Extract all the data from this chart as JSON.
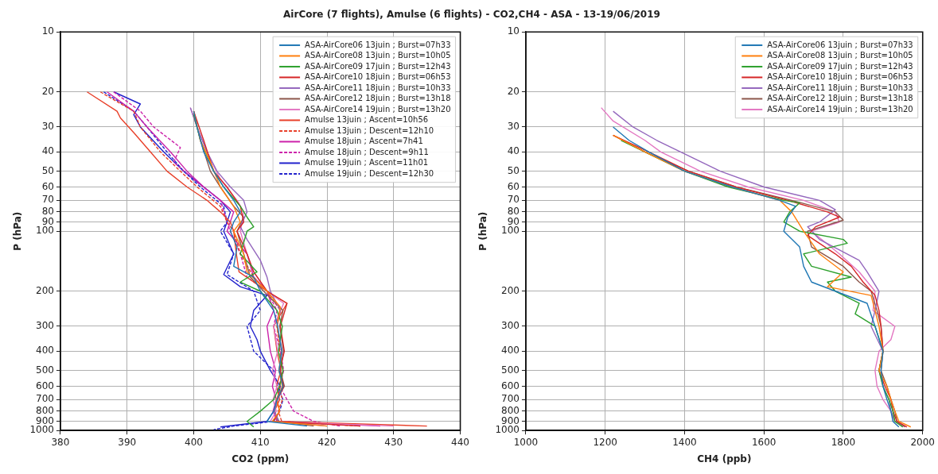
{
  "chart_data": [
    {
      "type": "line",
      "title": "AirCore (7 flights), Amulse (6 flights) - CO2,CH4 - ASA - 13-19/06/2019",
      "xlabel": "CO2 (ppm)",
      "ylabel": "P (hPa)",
      "xlim": [
        380,
        440
      ],
      "xticks": [
        380,
        390,
        400,
        410,
        420,
        430,
        440
      ],
      "ylim": [
        1000,
        10
      ],
      "yticks": [
        10,
        20,
        30,
        40,
        50,
        60,
        70,
        80,
        90,
        100,
        200,
        300,
        400,
        500,
        600,
        700,
        800,
        900,
        1000
      ],
      "log": "y",
      "grid": true,
      "legend": "top right",
      "marker": "none",
      "series": [
        {
          "name": "ASA-AirCore06 13juin ; Burst=07h33",
          "color": "#1f77b4",
          "x": [
            400,
            400.5,
            401.5,
            403,
            404.5,
            406,
            407,
            406,
            405.5,
            406.5,
            406,
            409,
            410,
            412,
            412.6,
            413.2,
            412.8,
            413.4,
            412.5,
            412,
            411,
            417
          ],
          "values": [
            25,
            30,
            40,
            50,
            60,
            70,
            80,
            90,
            100,
            120,
            150,
            170,
            200,
            250,
            300,
            400,
            500,
            600,
            700,
            800,
            900,
            950
          ]
        },
        {
          "name": "ASA-AirCore08 13juin ; Burst=10h05",
          "color": "#ff7f0e",
          "x": [
            400,
            401,
            402.5,
            404,
            406,
            407,
            406,
            407.5,
            408,
            411,
            413,
            412.5,
            413.2,
            412.8,
            413.3,
            412.4,
            412.9,
            411.8,
            420
          ],
          "values": [
            25,
            35,
            45,
            60,
            75,
            90,
            100,
            130,
            160,
            200,
            240,
            300,
            400,
            500,
            600,
            700,
            800,
            900,
            950
          ]
        },
        {
          "name": "ASA-AirCore09 17juin ; Burst=12h43",
          "color": "#2ca02c",
          "x": [
            400,
            401,
            403,
            404.5,
            407,
            408,
            409,
            408,
            407,
            409.5,
            407,
            410,
            412.5,
            413.3,
            412.7,
            413.4,
            412.9,
            412,
            410,
            408,
            409
          ],
          "values": [
            26,
            35,
            50,
            60,
            75,
            85,
            95,
            100,
            130,
            160,
            180,
            200,
            250,
            300,
            400,
            500,
            600,
            700,
            800,
            900,
            960
          ]
        },
        {
          "name": "ASA-AirCore10 18juin ; Burst=06h53",
          "color": "#d62728",
          "x": [
            400,
            401.5,
            403,
            405,
            407,
            407.5,
            406.5,
            408,
            409,
            411,
            414,
            413,
            413.6,
            412.9,
            413.5,
            412.5,
            412.9,
            411.9,
            425
          ],
          "values": [
            25,
            35,
            50,
            60,
            75,
            90,
            100,
            130,
            160,
            200,
            230,
            300,
            400,
            500,
            600,
            700,
            800,
            900,
            950
          ]
        },
        {
          "name": "ASA-AirCore11 18juin ; Burst=10h33",
          "color": "#9467bd",
          "x": [
            399.5,
            400.5,
            402,
            403.5,
            405.5,
            407.5,
            408,
            407,
            408,
            410,
            411,
            411.5,
            413,
            412.5,
            413.3,
            412.8,
            413.4,
            412.6,
            412.1,
            412.7,
            420
          ],
          "values": [
            24,
            30,
            40,
            50,
            60,
            70,
            80,
            95,
            110,
            140,
            170,
            200,
            250,
            300,
            400,
            500,
            600,
            700,
            800,
            900,
            950
          ]
        },
        {
          "name": "ASA-AirCore12 18juin ; Burst=13h18",
          "color": "#8c564b",
          "x": [
            400,
            401,
            402.5,
            404,
            406,
            407.5,
            406.5,
            407.5,
            408.5,
            410.5,
            413.4,
            412.9,
            413.5,
            413,
            413.6,
            412.5,
            412.1,
            412.8,
            418
          ],
          "values": [
            25,
            35,
            50,
            60,
            75,
            85,
            100,
            130,
            170,
            200,
            250,
            300,
            400,
            500,
            600,
            700,
            800,
            900,
            950
          ]
        },
        {
          "name": "ASA-AirCore14 19juin ; Burst=13h20",
          "color": "#e377c2",
          "x": [
            399.5,
            400.5,
            402,
            404,
            406.5,
            407.5,
            407,
            408,
            409,
            411,
            413.5,
            412,
            412.6,
            411.8,
            412.5,
            411.9,
            412.4,
            411.5,
            430
          ],
          "values": [
            24,
            30,
            40,
            55,
            70,
            80,
            100,
            130,
            160,
            200,
            230,
            300,
            400,
            500,
            600,
            700,
            800,
            900,
            950
          ]
        },
        {
          "name": "Amulse 13juin ; Ascent=10h56",
          "color": "#e8402a",
          "x": [
            384,
            388.5,
            389,
            391,
            393.5,
            396,
            399,
            402,
            404,
            405.5,
            406,
            406.4,
            406.8,
            411,
            414,
            412,
            412.5,
            413.1,
            412.4,
            412.9,
            412.1,
            412.6,
            435
          ],
          "values": [
            20,
            25,
            27,
            32,
            40,
            50,
            60,
            70,
            80,
            90,
            100,
            130,
            160,
            200,
            230,
            300,
            400,
            500,
            600,
            700,
            800,
            900,
            950
          ]
        },
        {
          "name": "Amulse 13juin ; Descent=12h10",
          "color": "#e8402a",
          "line_style": "dashed",
          "x": [
            386,
            391,
            392,
            395,
            398,
            400.5,
            404,
            405,
            406,
            407,
            409,
            411,
            413,
            412.5,
            412.9,
            413.4,
            412.8,
            413.3,
            412.7,
            413.2,
            425
          ],
          "values": [
            20,
            25,
            30,
            40,
            50,
            60,
            75,
            90,
            100,
            130,
            170,
            200,
            250,
            300,
            400,
            500,
            600,
            700,
            800,
            900,
            950
          ]
        },
        {
          "name": "Amulse 18juin ; Ascent=7h41",
          "color": "#cc22aa",
          "x": [
            387,
            391,
            393,
            396.5,
            399,
            401.5,
            404,
            406,
            405,
            408,
            409,
            411,
            412,
            411,
            411.5,
            412.3,
            411.8,
            412.4,
            411.9,
            412.5,
            428
          ],
          "values": [
            20,
            25,
            30,
            40,
            50,
            60,
            70,
            80,
            100,
            130,
            170,
            200,
            250,
            300,
            400,
            500,
            600,
            700,
            800,
            900,
            950
          ]
        },
        {
          "name": "Amulse 18juin ; Descent=9h11",
          "color": "#cc22aa",
          "line_style": "dashed",
          "x": [
            388,
            392,
            394,
            398,
            397,
            400,
            404,
            405,
            405.5,
            407,
            408,
            411,
            412.5,
            412,
            413,
            413.5,
            412.9,
            414,
            415,
            418,
            422
          ],
          "values": [
            20,
            25,
            30,
            38,
            45,
            55,
            70,
            90,
            100,
            130,
            170,
            200,
            250,
            300,
            400,
            500,
            600,
            700,
            800,
            900,
            950
          ]
        },
        {
          "name": "Amulse 19juin ; Ascent=11h01",
          "color": "#2222cc",
          "x": [
            388,
            392,
            391,
            392,
            395.5,
            398.5,
            401.5,
            404,
            405.5,
            405,
            404.5,
            406,
            404.5,
            407,
            411,
            409,
            408.5,
            409.5,
            410,
            411.5,
            413,
            412.5,
            412,
            411,
            404
          ],
          "values": [
            20,
            23,
            26,
            30,
            40,
            50,
            60,
            70,
            80,
            90,
            100,
            130,
            165,
            190,
            210,
            250,
            300,
            350,
            400,
            500,
            600,
            700,
            800,
            900,
            960
          ]
        },
        {
          "name": "Amulse 19juin ; Descent=12h30",
          "color": "#2222cc",
          "line_style": "dashed",
          "x": [
            386.5,
            391,
            393,
            396,
            398.5,
            401,
            404.5,
            405,
            404,
            406,
            405,
            409,
            410,
            408,
            409,
            412,
            412.6,
            413.4,
            412.9,
            412,
            406,
            403
          ],
          "values": [
            20,
            25,
            30,
            40,
            50,
            60,
            75,
            90,
            100,
            130,
            165,
            200,
            250,
            300,
            400,
            500,
            600,
            700,
            800,
            900,
            950,
            990
          ]
        }
      ]
    },
    {
      "type": "line",
      "xlabel": "CH4 (ppb)",
      "ylabel": "P (hPa)",
      "xlim": [
        1000,
        2000
      ],
      "xticks": [
        1000,
        1200,
        1400,
        1600,
        1800,
        2000
      ],
      "ylim": [
        1000,
        10
      ],
      "yticks": [
        10,
        20,
        30,
        40,
        50,
        60,
        70,
        80,
        90,
        100,
        200,
        300,
        400,
        500,
        600,
        700,
        800,
        900,
        1000
      ],
      "log": "y",
      "grid": true,
      "legend": "top right",
      "marker": "none",
      "series": [
        {
          "name": "ASA-AirCore06 13juin ; Burst=07h33",
          "color": "#1f77b4",
          "x": [
            1220,
            1260,
            1310,
            1400,
            1520,
            1640,
            1680,
            1660,
            1650,
            1690,
            1700,
            1720,
            1780,
            1860,
            1880,
            1900,
            1895,
            1900,
            1910,
            1920,
            1925,
            1940
          ],
          "values": [
            30,
            35,
            40,
            50,
            60,
            70,
            75,
            85,
            100,
            120,
            150,
            180,
            200,
            230,
            300,
            400,
            500,
            600,
            700,
            800,
            900,
            960
          ]
        },
        {
          "name": "ASA-AirCore08 13juin ; Burst=10h05",
          "color": "#ff7f0e",
          "x": [
            1220,
            1300,
            1400,
            1520,
            1640,
            1670,
            1700,
            1740,
            1800,
            1760,
            1870,
            1880,
            1890,
            1900,
            1890,
            1910,
            1920,
            1930,
            1940,
            1970
          ],
          "values": [
            33,
            40,
            50,
            60,
            70,
            80,
            100,
            130,
            160,
            190,
            210,
            250,
            300,
            400,
            500,
            600,
            700,
            800,
            900,
            960
          ]
        },
        {
          "name": "ASA-AirCore09 17juin ; Burst=12h43",
          "color": "#2ca02c",
          "x": [
            1240,
            1300,
            1400,
            1510,
            1650,
            1690,
            1665,
            1650,
            1690,
            1800,
            1810,
            1700,
            1720,
            1820,
            1760,
            1780,
            1840,
            1830,
            1880,
            1900,
            1890,
            1900,
            1915,
            1925,
            1930,
            1950
          ],
          "values": [
            35,
            40,
            50,
            60,
            70,
            72,
            80,
            90,
            100,
            110,
            115,
            130,
            150,
            170,
            180,
            200,
            230,
            260,
            300,
            400,
            500,
            600,
            700,
            800,
            900,
            960
          ]
        },
        {
          "name": "ASA-AirCore10 18juin ; Burst=06h53",
          "color": "#d62728",
          "x": [
            1220,
            1310,
            1410,
            1530,
            1660,
            1760,
            1790,
            1730,
            1710,
            1780,
            1820,
            1850,
            1880,
            1890,
            1895,
            1900,
            1890,
            1905,
            1920,
            1925,
            1935,
            1960
          ],
          "values": [
            33,
            40,
            50,
            60,
            70,
            80,
            85,
            95,
            105,
            130,
            150,
            180,
            210,
            250,
            300,
            400,
            500,
            600,
            700,
            800,
            900,
            960
          ]
        },
        {
          "name": "ASA-AirCore11 18juin ; Burst=10h33",
          "color": "#9467bd",
          "x": [
            1220,
            1270,
            1330,
            1390,
            1490,
            1600,
            1740,
            1780,
            1740,
            1710,
            1740,
            1840,
            1860,
            1890,
            1880,
            1870,
            1900,
            1890,
            1900,
            1915,
            1920,
            1930,
            1950
          ],
          "values": [
            25,
            30,
            35,
            40,
            50,
            60,
            70,
            78,
            90,
            95,
            110,
            140,
            160,
            200,
            250,
            300,
            400,
            500,
            600,
            700,
            800,
            900,
            960
          ]
        },
        {
          "name": "ASA-AirCore12 18juin ; Burst=13h18",
          "color": "#8c564b",
          "x": [
            1220,
            1300,
            1410,
            1530,
            1670,
            1780,
            1800,
            1710,
            1720,
            1800,
            1840,
            1870,
            1885,
            1895,
            1900,
            1895,
            1910,
            1920,
            1930,
            1935,
            1955
          ],
          "values": [
            33,
            40,
            50,
            60,
            70,
            80,
            88,
            100,
            120,
            150,
            180,
            200,
            250,
            300,
            400,
            500,
            600,
            700,
            800,
            900,
            960
          ]
        },
        {
          "name": "ASA-AirCore14 19juin ; Burst=13h20",
          "color": "#e377c2",
          "x": [
            1190,
            1220,
            1300,
            1340,
            1440,
            1560,
            1700,
            1780,
            1790,
            1720,
            1790,
            1840,
            1880,
            1875,
            1930,
            1920,
            1890,
            1880,
            1885,
            1900,
            1920,
            1930,
            1960
          ],
          "values": [
            24,
            28,
            35,
            40,
            50,
            60,
            70,
            80,
            90,
            100,
            130,
            160,
            200,
            250,
            300,
            350,
            400,
            500,
            600,
            700,
            800,
            900,
            960
          ]
        }
      ]
    }
  ]
}
